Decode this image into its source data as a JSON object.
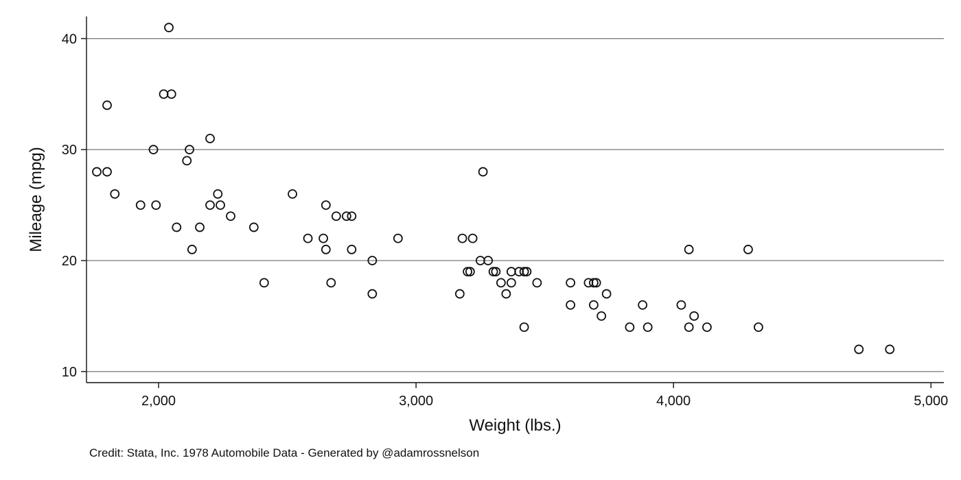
{
  "chart_data": {
    "type": "scatter",
    "xlabel": "Weight (lbs.)",
    "ylabel": "Mileage (mpg)",
    "xlim": [
      1720,
      5050
    ],
    "ylim": [
      9,
      42
    ],
    "xticks": [
      2000,
      3000,
      4000,
      5000
    ],
    "xtick_labels": [
      "2,000",
      "3,000",
      "4,000",
      "5,000"
    ],
    "yticks": [
      10,
      20,
      30,
      40
    ],
    "ytick_labels": [
      "10",
      "20",
      "30",
      "40"
    ],
    "grid": "horizontal",
    "marker": "hollow-circle",
    "colors": {
      "marker": "#111111",
      "grid": "#555555",
      "axis": "#111111"
    },
    "points": [
      [
        2040,
        41
      ],
      [
        2020,
        35
      ],
      [
        2050,
        35
      ],
      [
        1800,
        34
      ],
      [
        2200,
        31
      ],
      [
        1980,
        30
      ],
      [
        2120,
        30
      ],
      [
        2110,
        29
      ],
      [
        1760,
        28
      ],
      [
        1800,
        28
      ],
      [
        3260,
        28
      ],
      [
        1830,
        26
      ],
      [
        2230,
        26
      ],
      [
        2520,
        26
      ],
      [
        1930,
        25
      ],
      [
        1990,
        25
      ],
      [
        2200,
        25
      ],
      [
        2240,
        25
      ],
      [
        2650,
        25
      ],
      [
        2280,
        24
      ],
      [
        2690,
        24
      ],
      [
        2730,
        24
      ],
      [
        2750,
        24
      ],
      [
        2070,
        23
      ],
      [
        2160,
        23
      ],
      [
        2370,
        23
      ],
      [
        2580,
        22
      ],
      [
        2640,
        22
      ],
      [
        2930,
        22
      ],
      [
        3180,
        22
      ],
      [
        3220,
        22
      ],
      [
        2130,
        21
      ],
      [
        2650,
        21
      ],
      [
        2750,
        21
      ],
      [
        4060,
        21
      ],
      [
        4290,
        21
      ],
      [
        2830,
        20
      ],
      [
        3250,
        20
      ],
      [
        3280,
        20
      ],
      [
        3200,
        19
      ],
      [
        3210,
        19
      ],
      [
        3300,
        19
      ],
      [
        3310,
        19
      ],
      [
        3370,
        19
      ],
      [
        3400,
        19
      ],
      [
        3420,
        19
      ],
      [
        3430,
        19
      ],
      [
        2410,
        18
      ],
      [
        2670,
        18
      ],
      [
        3330,
        18
      ],
      [
        3370,
        18
      ],
      [
        3470,
        18
      ],
      [
        3600,
        18
      ],
      [
        3670,
        18
      ],
      [
        3690,
        18
      ],
      [
        3700,
        18
      ],
      [
        2830,
        17
      ],
      [
        3170,
        17
      ],
      [
        3350,
        17
      ],
      [
        3740,
        17
      ],
      [
        3600,
        16
      ],
      [
        3690,
        16
      ],
      [
        3880,
        16
      ],
      [
        4030,
        16
      ],
      [
        3720,
        15
      ],
      [
        4080,
        15
      ],
      [
        3420,
        14
      ],
      [
        3830,
        14
      ],
      [
        3900,
        14
      ],
      [
        4060,
        14
      ],
      [
        4130,
        14
      ],
      [
        4330,
        14
      ],
      [
        4720,
        12
      ],
      [
        4840,
        12
      ]
    ]
  },
  "caption": "Credit: Stata, Inc. 1978 Automobile Data - Generated by @adamrossnelson"
}
